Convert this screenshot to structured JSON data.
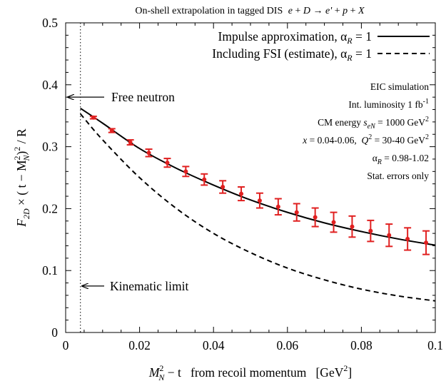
{
  "chart_data": {
    "type": "line",
    "title": "On-shell extrapolation in tagged DIS",
    "title_reaction": {
      "e": "e",
      "plus1": " + ",
      "D": "D",
      "arrow": " → ",
      "ep": "e'",
      "plus2": " + ",
      "p": "p",
      "plus3": " + ",
      "X": "X"
    },
    "xlim": [
      0,
      0.1
    ],
    "ylim": [
      0,
      0.5
    ],
    "x_ticks": [
      {
        "value": 0,
        "label": "0"
      },
      {
        "value": 0.02,
        "label": "0.02"
      },
      {
        "value": 0.04,
        "label": "0.04"
      },
      {
        "value": 0.06,
        "label": "0.06"
      },
      {
        "value": 0.08,
        "label": "0.08"
      },
      {
        "value": 0.1,
        "label": "0.1"
      }
    ],
    "y_ticks": [
      {
        "value": 0,
        "label": "0"
      },
      {
        "value": 0.1,
        "label": "0.1"
      },
      {
        "value": 0.2,
        "label": "0.2"
      },
      {
        "value": 0.3,
        "label": "0.3"
      },
      {
        "value": 0.4,
        "label": "0.4"
      },
      {
        "value": 0.5,
        "label": "0.5"
      }
    ],
    "xlabel": {
      "M": "M",
      "sup": "2",
      "sub": "N",
      "rest": " − t   from recoil momentum   [GeV",
      "unit_sup": "2",
      "close": "]"
    },
    "ylabel": {
      "F": "F",
      "F_sub": "2D",
      "times": " × ( t − M",
      "M_sup": "2",
      "M_sub": "N",
      "close": ")",
      "pow": "2",
      "div": " / R"
    },
    "series": [
      {
        "name": "Impulse approximation, α",
        "name_sub": "R",
        "name_tail": " = 1",
        "style": "solid",
        "color": "#000000",
        "x": [
          0.004,
          0.01,
          0.02,
          0.03,
          0.04,
          0.05,
          0.06,
          0.07,
          0.08,
          0.09,
          0.1
        ],
        "y": [
          0.362,
          0.338,
          0.297,
          0.265,
          0.238,
          0.214,
          0.194,
          0.177,
          0.163,
          0.151,
          0.141
        ]
      },
      {
        "name": "Including FSI (estimate), α",
        "name_sub": "R",
        "name_tail": " = 1",
        "style": "dashed",
        "color": "#000000",
        "x": [
          0.004,
          0.01,
          0.02,
          0.03,
          0.04,
          0.05,
          0.06,
          0.07,
          0.08,
          0.09,
          0.1
        ],
        "y": [
          0.353,
          0.311,
          0.25,
          0.2,
          0.16,
          0.129,
          0.104,
          0.085,
          0.07,
          0.059,
          0.051
        ]
      },
      {
        "name": "EIC simulation",
        "style": "points",
        "color": "#e02020",
        "x": [
          0.0075,
          0.0125,
          0.0175,
          0.0225,
          0.0275,
          0.0325,
          0.0375,
          0.0425,
          0.0475,
          0.0525,
          0.0575,
          0.0625,
          0.0675,
          0.0725,
          0.0775,
          0.0825,
          0.0875,
          0.0925,
          0.0975
        ],
        "y": [
          0.347,
          0.326,
          0.307,
          0.29,
          0.274,
          0.26,
          0.247,
          0.235,
          0.224,
          0.213,
          0.203,
          0.194,
          0.186,
          0.178,
          0.171,
          0.164,
          0.157,
          0.151,
          0.145
        ],
        "err": [
          0.002,
          0.003,
          0.004,
          0.006,
          0.007,
          0.008,
          0.009,
          0.01,
          0.011,
          0.012,
          0.013,
          0.014,
          0.015,
          0.016,
          0.017,
          0.017,
          0.018,
          0.018,
          0.019
        ]
      }
    ],
    "vertical_lines": [
      {
        "x": 0.004,
        "style": "dotted"
      }
    ],
    "annotations": {
      "free_neutron": {
        "label": "Free neutron",
        "y": 0.38
      },
      "kinematic_limit": {
        "label": "Kinematic limit",
        "y": 0.075
      }
    },
    "info_box": {
      "line1": "EIC simulation",
      "line2": {
        "text": "Int. luminosity 1 fb",
        "sup": "-1"
      },
      "line3": {
        "text": "CM energy ",
        "s": "s",
        "s_sub": "eN",
        "tail": " = 1000 GeV",
        "sup": "2"
      },
      "line4": {
        "x": "x",
        "a": " = 0.04-0.06,  ",
        "Q": "Q",
        "Q_sup": "2",
        "b": " = 30-40 GeV",
        "sup": "2"
      },
      "line5": {
        "alpha": "α",
        "sub": "R",
        "tail": " = 0.98-1.02"
      },
      "line6": "Stat. errors only"
    },
    "legend_position": "top-right",
    "grid": false
  }
}
